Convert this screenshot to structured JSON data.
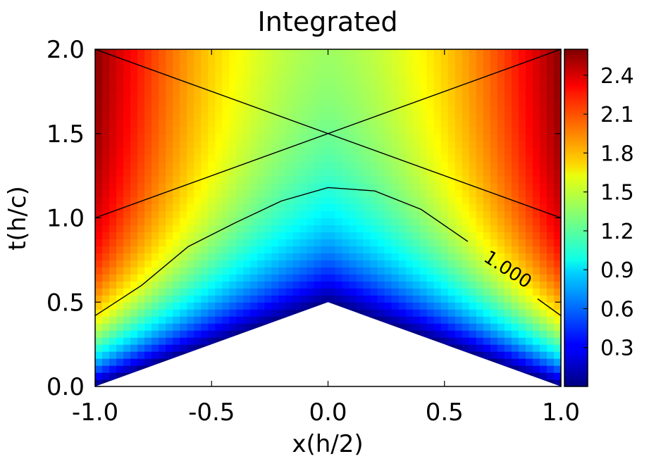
{
  "chart_data": {
    "type": "heatmap",
    "title": "Integrated",
    "xlabel": "x(h/2)",
    "ylabel": "t(h/c)",
    "xlim": [
      -1.0,
      1.0
    ],
    "ylim": [
      0.0,
      2.0
    ],
    "x_ticks": [
      -1.0,
      -0.5,
      0.0,
      0.5,
      1.0
    ],
    "x_tick_labels": [
      "-1.0",
      "-0.5",
      "0.0",
      "0.5",
      "1.0"
    ],
    "y_ticks": [
      0.0,
      0.5,
      1.0,
      1.5,
      2.0
    ],
    "y_tick_labels": [
      "0.0",
      "0.5",
      "1.0",
      "1.5",
      "2.0"
    ],
    "colormap": "jet",
    "color_range": [
      0.0,
      2.6
    ],
    "colorbar_ticks": [
      0.3,
      0.6,
      0.9,
      1.2,
      1.5,
      1.8,
      2.1,
      2.4
    ],
    "colorbar_tick_labels": [
      "0.3",
      "0.6",
      "0.9",
      "1.2",
      "1.5",
      "1.8",
      "2.1",
      "2.4"
    ],
    "field_corners": {
      "edge_at_t0": 0.0,
      "center_at_t0.5": 0.0,
      "edge_at_t1.0": 2.3,
      "edge_at_t2.0": 2.6,
      "center_at_t2.0": 1.45
    },
    "undefined_region": {
      "description_points": [
        [
          -1.0,
          0.0
        ],
        [
          0.0,
          0.5
        ],
        [
          1.0,
          0.0
        ]
      ]
    },
    "lines": [
      {
        "points": [
          [
            -1.0,
            2.0
          ],
          [
            1.0,
            1.0
          ]
        ]
      },
      {
        "points": [
          [
            -1.0,
            1.0
          ],
          [
            1.0,
            2.0
          ]
        ]
      },
      {
        "points": [
          [
            -1.0,
            0.42
          ],
          [
            -0.8,
            0.6
          ],
          [
            -0.6,
            0.83
          ],
          [
            -0.4,
            0.97
          ],
          [
            -0.2,
            1.1
          ],
          [
            0.0,
            1.18
          ],
          [
            0.2,
            1.16
          ],
          [
            0.4,
            1.05
          ],
          [
            0.6,
            0.86
          ],
          [
            0.75,
            0.72
          ],
          [
            0.9,
            0.52
          ],
          [
            1.0,
            0.42
          ]
        ]
      }
    ],
    "contour": {
      "level": 1.0,
      "label": "1.000",
      "points": [
        [
          -1.0,
          0.42
        ],
        [
          -0.8,
          0.6
        ],
        [
          -0.6,
          0.83
        ],
        [
          -0.4,
          0.97
        ],
        [
          -0.2,
          1.1
        ],
        [
          0.0,
          1.18
        ],
        [
          0.2,
          1.16
        ],
        [
          0.4,
          1.05
        ],
        [
          0.6,
          0.86
        ],
        [
          0.75,
          0.72
        ],
        [
          0.9,
          0.52
        ],
        [
          1.0,
          0.42
        ]
      ]
    },
    "grid": false,
    "legend": "none"
  }
}
